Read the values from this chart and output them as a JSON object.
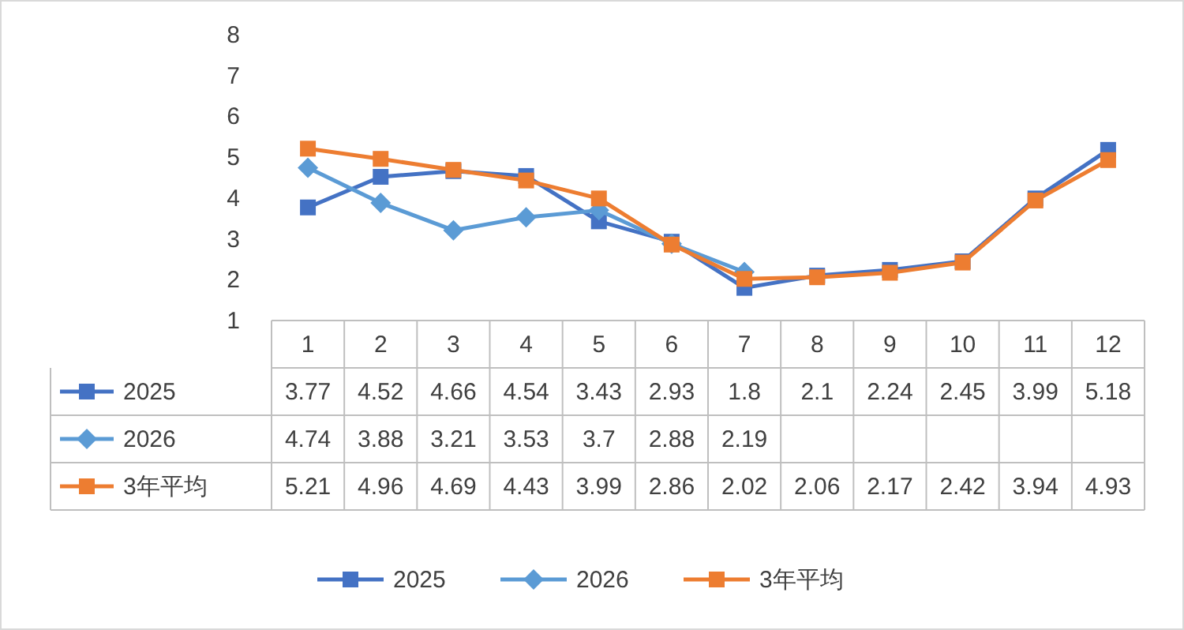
{
  "chart_data": {
    "type": "line",
    "categories": [
      "1",
      "2",
      "3",
      "4",
      "5",
      "6",
      "7",
      "8",
      "9",
      "10",
      "11",
      "12"
    ],
    "series": [
      {
        "name": "2025",
        "color": "#4472c4",
        "marker": "square",
        "values": [
          3.77,
          4.52,
          4.66,
          4.54,
          3.43,
          2.93,
          1.8,
          2.1,
          2.24,
          2.45,
          3.99,
          5.18
        ]
      },
      {
        "name": "2026",
        "color": "#5b9bd5",
        "marker": "diamond",
        "values": [
          4.74,
          3.88,
          3.21,
          3.53,
          3.7,
          2.88,
          2.19,
          null,
          null,
          null,
          null,
          null
        ]
      },
      {
        "name": "3年平均",
        "color": "#ed7d31",
        "marker": "square",
        "values": [
          5.21,
          4.96,
          4.69,
          4.43,
          3.99,
          2.86,
          2.02,
          2.06,
          2.17,
          2.42,
          3.94,
          4.93
        ]
      }
    ],
    "ylim": [
      1,
      8
    ],
    "yticks": [
      1,
      2,
      3,
      4,
      5,
      6,
      7,
      8
    ],
    "data_labels": true,
    "legend": "bottom",
    "grid": false
  }
}
